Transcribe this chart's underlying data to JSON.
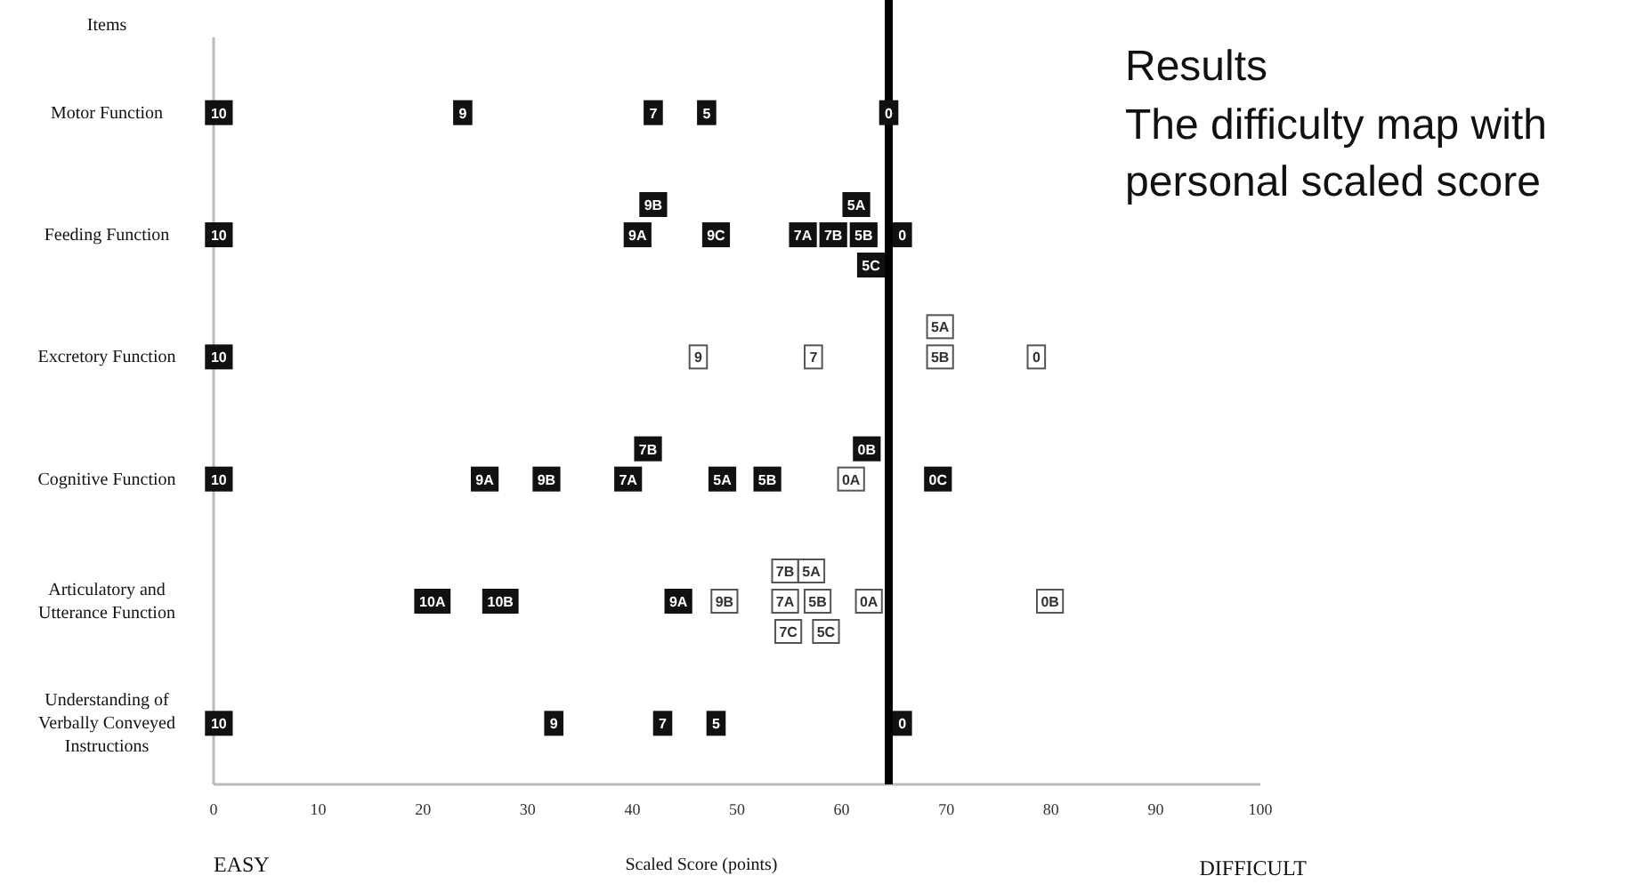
{
  "chart_data": {
    "type": "scatter",
    "orientation": "horizontal",
    "title": "Results",
    "subtitle": "The difficulty map with personal scaled score",
    "ylabel": "Items",
    "xlabel": "Scaled Score (points)",
    "annotations": [
      "EASY",
      "DIFFICULT"
    ],
    "categories": [
      "Motor Function",
      "Feeding Function",
      "Excretory Function",
      "Cognitive Function",
      "Articulatory and Utterance Function",
      "Understanding of Verbally Conveyed Instructions"
    ],
    "xlim": [
      0,
      100
    ],
    "xticks": [
      0,
      10,
      20,
      30,
      40,
      50,
      60,
      70,
      80,
      90,
      100
    ],
    "marker": "square",
    "ref_lines": [
      {
        "axis": "x",
        "value": 64.5,
        "color": "#000000"
      }
    ],
    "series": [
      {
        "name": "10",
        "values": [
          0.5,
          0.5,
          0.5,
          0.5,
          null,
          0.5
        ],
        "colors": [
          "#111111",
          "#111111",
          "#111111",
          "#111111",
          null,
          "#111111"
        ]
      },
      {
        "name": "10A",
        "values": [
          null,
          null,
          null,
          null,
          20.9,
          null
        ],
        "colors": [
          null,
          null,
          null,
          null,
          "#111111",
          null
        ]
      },
      {
        "name": "10B",
        "values": [
          null,
          null,
          null,
          null,
          27.4,
          null
        ],
        "colors": [
          null,
          null,
          null,
          null,
          "#111111",
          null
        ]
      },
      {
        "name": "9",
        "values": [
          23.8,
          null,
          46.3,
          null,
          null,
          32.5
        ],
        "colors": [
          "#111111",
          null,
          "#ffffff",
          null,
          null,
          "#111111"
        ]
      },
      {
        "name": "9A",
        "values": [
          null,
          40.5,
          null,
          25.9,
          44.4,
          null
        ],
        "colors": [
          null,
          "#111111",
          null,
          "#111111",
          "#111111",
          null
        ]
      },
      {
        "name": "9B",
        "values": [
          null,
          42,
          null,
          31.8,
          48.8,
          null
        ],
        "colors": [
          null,
          "#111111",
          null,
          "#111111",
          "#ffffff",
          null
        ]
      },
      {
        "name": "9C",
        "values": [
          null,
          48,
          null,
          null,
          null,
          null
        ],
        "colors": [
          null,
          "#111111",
          null,
          null,
          null,
          null
        ]
      },
      {
        "name": "7",
        "values": [
          42,
          null,
          57.3,
          null,
          null,
          42.9
        ],
        "colors": [
          "#111111",
          null,
          "#ffffff",
          null,
          null,
          "#111111"
        ]
      },
      {
        "name": "7A",
        "values": [
          null,
          56.3,
          null,
          39.6,
          54.6,
          null
        ],
        "colors": [
          null,
          "#111111",
          null,
          "#111111",
          "#ffffff",
          null
        ]
      },
      {
        "name": "7B",
        "values": [
          null,
          59.2,
          null,
          41.5,
          54.6,
          null
        ],
        "colors": [
          null,
          "#111111",
          null,
          "#111111",
          "#ffffff",
          null
        ]
      },
      {
        "name": "7C",
        "values": [
          null,
          null,
          null,
          null,
          54.9,
          null
        ],
        "colors": [
          null,
          null,
          null,
          null,
          "#ffffff",
          null
        ]
      },
      {
        "name": "5",
        "values": [
          47.1,
          null,
          null,
          null,
          null,
          48
        ],
        "colors": [
          "#111111",
          null,
          null,
          null,
          null,
          "#111111"
        ]
      },
      {
        "name": "5B",
        "values": [
          null,
          62.1,
          69.4,
          52.9,
          57.7,
          null
        ],
        "colors": [
          null,
          "#111111",
          "#ffffff",
          "#111111",
          "#ffffff",
          null
        ]
      },
      {
        "name": "5A",
        "values": [
          null,
          61.4,
          69.4,
          48.6,
          57.1,
          null
        ],
        "colors": [
          null,
          "#111111",
          "#ffffff",
          "#111111",
          "#ffffff",
          null
        ]
      },
      {
        "name": "5C",
        "values": [
          null,
          62.8,
          null,
          null,
          58.5,
          null
        ],
        "colors": [
          null,
          "#111111",
          null,
          null,
          "#ffffff",
          null
        ]
      },
      {
        "name": "0",
        "values": [
          64.5,
          65.8,
          78.6,
          null,
          null,
          65.8
        ],
        "colors": [
          "#111111",
          "#111111",
          "#ffffff",
          null,
          null,
          "#111111"
        ]
      },
      {
        "name": "0A",
        "values": [
          null,
          null,
          null,
          60.9,
          62.6,
          null
        ],
        "colors": [
          null,
          null,
          null,
          "#ffffff",
          "#ffffff",
          null
        ]
      },
      {
        "name": "0B",
        "values": [
          null,
          null,
          null,
          62.4,
          79.9,
          null
        ],
        "colors": [
          null,
          null,
          null,
          "#111111",
          "#ffffff",
          null
        ]
      },
      {
        "name": "0C",
        "values": [
          null,
          null,
          null,
          69.2,
          null,
          null
        ],
        "colors": [
          null,
          null,
          null,
          "#111111",
          null,
          null
        ]
      }
    ]
  }
}
